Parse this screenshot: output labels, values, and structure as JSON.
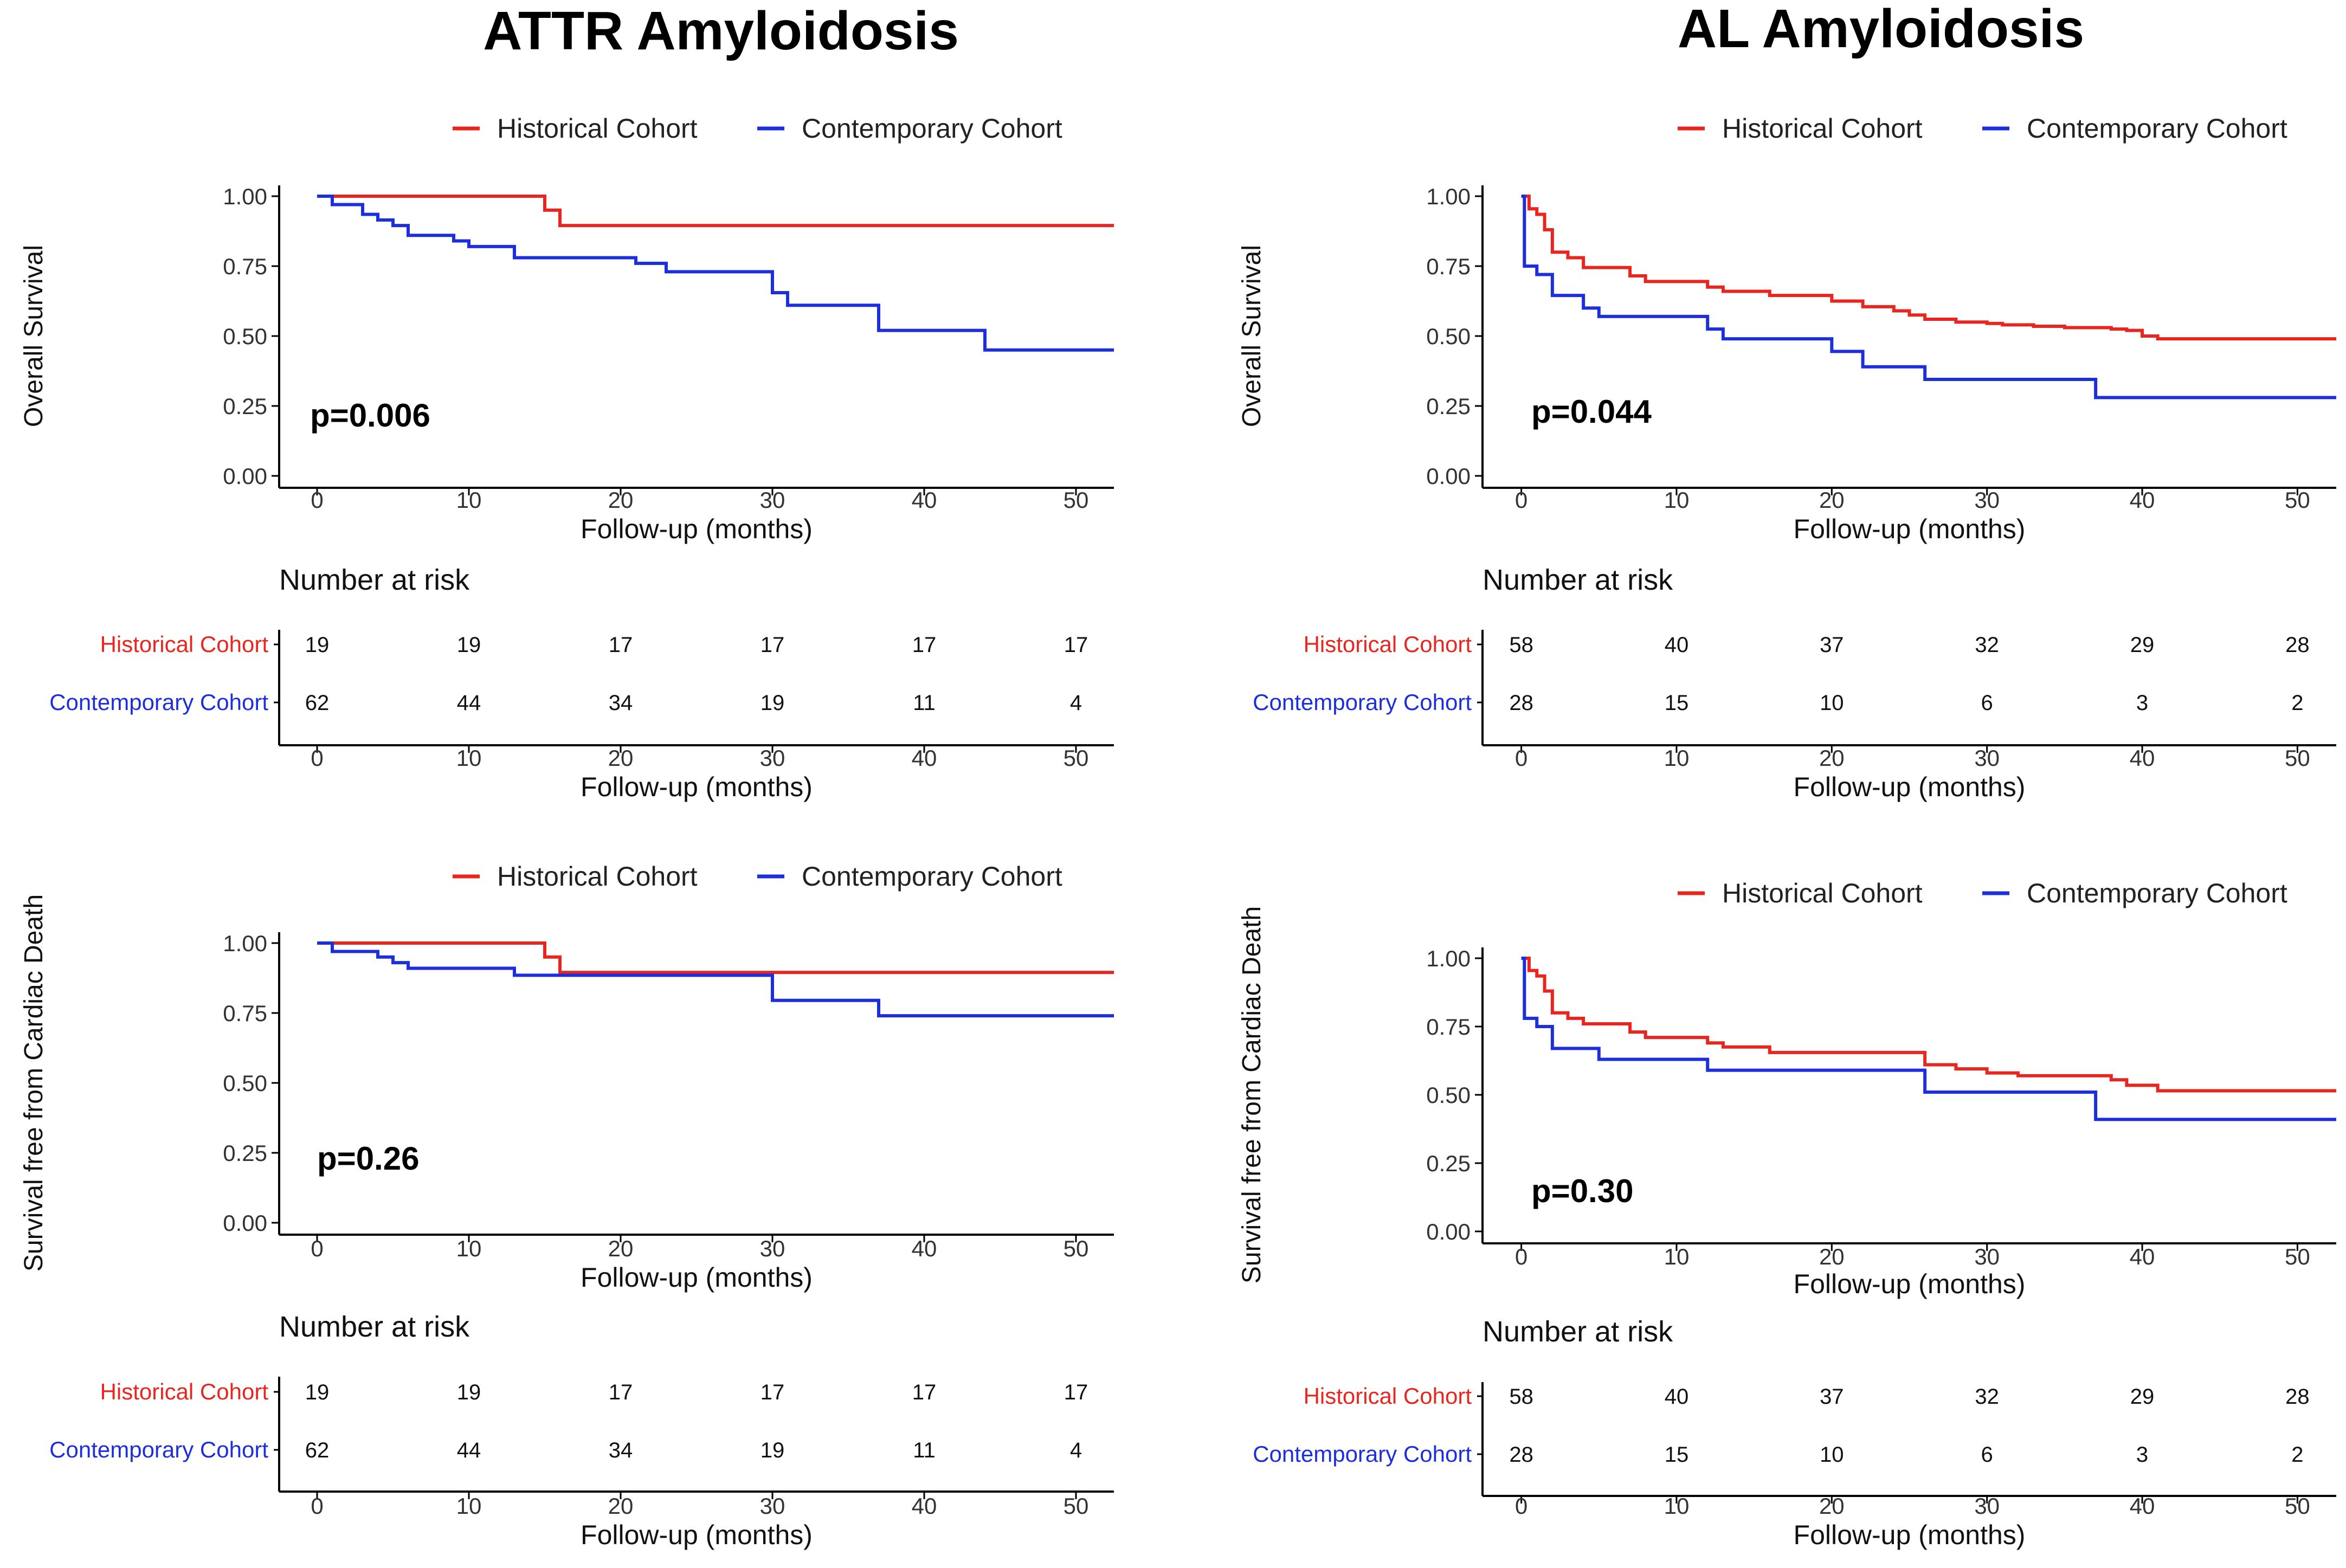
{
  "figure": {
    "columns": [
      {
        "title": "ATTR Amyloidosis"
      },
      {
        "title": "AL Amyloidosis"
      }
    ]
  },
  "colors": {
    "historical": "#e8261f",
    "contemporary": "#1c2fdb",
    "axis": "#000000"
  },
  "chart_data": [
    {
      "id": "attr-os",
      "type": "line",
      "title": "ATTR Amyloidosis",
      "ylabel": "Overall Survival",
      "xlabel": "Follow-up (months)",
      "xlim": [
        -2.5,
        52.5
      ],
      "ylim": [
        -0.05,
        1.05
      ],
      "xticks": [
        0,
        10,
        20,
        30,
        40,
        50
      ],
      "yticks": [
        "0.00",
        "0.25",
        "0.50",
        "0.75",
        "1.00"
      ],
      "legend": [
        "Historical Cohort",
        "Contemporary Cohort"
      ],
      "legend_position": "top",
      "pvalue": "p=0.006",
      "series": [
        {
          "name": "Historical Cohort",
          "x": [
            0,
            15,
            16,
            52.5
          ],
          "y": [
            1.0,
            0.95,
            0.895,
            0.895
          ]
        },
        {
          "name": "Contemporary Cohort",
          "x": [
            0,
            1,
            3,
            4,
            5,
            6,
            9,
            10,
            13,
            21,
            23,
            30,
            31,
            37,
            44,
            52.5
          ],
          "y": [
            1.0,
            0.97,
            0.935,
            0.915,
            0.895,
            0.86,
            0.84,
            0.82,
            0.78,
            0.76,
            0.73,
            0.655,
            0.61,
            0.52,
            0.45,
            0.45
          ]
        }
      ],
      "risk_table": {
        "title": "Number at risk",
        "rows": [
          {
            "name": "Historical Cohort",
            "values": [
              "19",
              "19",
              "17",
              "17",
              "17",
              "17"
            ]
          },
          {
            "name": "Contemporary Cohort",
            "values": [
              "62",
              "44",
              "34",
              "19",
              "11",
              "4"
            ]
          }
        ]
      }
    },
    {
      "id": "al-os",
      "type": "line",
      "title": "AL Amyloidosis",
      "ylabel": "Overall Survival",
      "xlabel": "Follow-up (months)",
      "xlim": [
        -2.5,
        52.5
      ],
      "ylim": [
        -0.05,
        1.05
      ],
      "xticks": [
        0,
        10,
        20,
        30,
        40,
        50
      ],
      "yticks": [
        "0.00",
        "0.25",
        "0.50",
        "0.75",
        "1.00"
      ],
      "legend": [
        "Historical Cohort",
        "Contemporary Cohort"
      ],
      "legend_position": "top",
      "pvalue": "p=0.044",
      "series": [
        {
          "name": "Historical Cohort",
          "x": [
            0,
            0.5,
            1,
            1.5,
            2,
            3,
            4,
            7,
            8,
            12,
            13,
            16,
            20,
            22,
            24,
            25,
            26,
            28,
            30,
            31,
            33,
            35,
            38,
            39,
            40,
            41,
            52.5
          ],
          "y": [
            1.0,
            0.955,
            0.935,
            0.88,
            0.8,
            0.78,
            0.745,
            0.715,
            0.695,
            0.675,
            0.66,
            0.645,
            0.625,
            0.605,
            0.59,
            0.575,
            0.56,
            0.55,
            0.545,
            0.54,
            0.535,
            0.53,
            0.525,
            0.52,
            0.5,
            0.49,
            0.49
          ]
        },
        {
          "name": "Contemporary Cohort",
          "x": [
            0,
            0.2,
            1,
            2,
            4,
            5,
            12,
            13,
            20,
            22,
            26,
            37,
            52.5
          ],
          "y": [
            1.0,
            0.75,
            0.72,
            0.645,
            0.6,
            0.57,
            0.525,
            0.49,
            0.445,
            0.39,
            0.345,
            0.28,
            0.28
          ]
        }
      ],
      "risk_table": {
        "title": "Number at risk",
        "rows": [
          {
            "name": "Historical Cohort",
            "values": [
              "58",
              "40",
              "37",
              "32",
              "29",
              "28"
            ]
          },
          {
            "name": "Contemporary Cohort",
            "values": [
              "28",
              "15",
              "10",
              "6",
              "3",
              "2"
            ]
          }
        ]
      }
    },
    {
      "id": "attr-cd",
      "type": "line",
      "title": "ATTR Amyloidosis",
      "ylabel": "Survival free from Cardiac Death",
      "xlabel": "Follow-up (months)",
      "xlim": [
        -2.5,
        52.5
      ],
      "ylim": [
        -0.05,
        1.05
      ],
      "xticks": [
        0,
        10,
        20,
        30,
        40,
        50
      ],
      "yticks": [
        "0.00",
        "0.25",
        "0.50",
        "0.75",
        "1.00"
      ],
      "legend": [
        "Historical Cohort",
        "Contemporary Cohort"
      ],
      "legend_position": "top",
      "pvalue": "p=0.26",
      "series": [
        {
          "name": "Historical Cohort",
          "x": [
            0,
            15,
            16,
            52.5
          ],
          "y": [
            1.0,
            0.95,
            0.895,
            0.895
          ]
        },
        {
          "name": "Contemporary Cohort",
          "x": [
            0,
            1,
            4,
            5,
            6,
            13,
            30,
            37,
            52.5
          ],
          "y": [
            1.0,
            0.97,
            0.95,
            0.93,
            0.91,
            0.885,
            0.795,
            0.74,
            0.74
          ]
        }
      ],
      "risk_table": {
        "title": "Number at risk",
        "rows": [
          {
            "name": "Historical Cohort",
            "values": [
              "19",
              "19",
              "17",
              "17",
              "17",
              "17"
            ]
          },
          {
            "name": "Contemporary Cohort",
            "values": [
              "62",
              "44",
              "34",
              "19",
              "11",
              "4"
            ]
          }
        ]
      }
    },
    {
      "id": "al-cd",
      "type": "line",
      "title": "AL Amyloidosis",
      "ylabel": "Survival free from Cardiac Death",
      "xlabel": "Follow-up (months)",
      "xlim": [
        -2.5,
        52.5
      ],
      "ylim": [
        -0.05,
        1.05
      ],
      "xticks": [
        0,
        10,
        20,
        30,
        40,
        50
      ],
      "yticks": [
        "0.00",
        "0.25",
        "0.50",
        "0.75",
        "1.00"
      ],
      "legend": [
        "Historical Cohort",
        "Contemporary Cohort"
      ],
      "legend_position": "top",
      "pvalue": "p=0.30",
      "series": [
        {
          "name": "Historical Cohort",
          "x": [
            0,
            0.5,
            1,
            1.5,
            2,
            3,
            4,
            7,
            8,
            12,
            13,
            16,
            26,
            28,
            30,
            32,
            38,
            39,
            41,
            52.5
          ],
          "y": [
            1.0,
            0.955,
            0.935,
            0.88,
            0.8,
            0.78,
            0.76,
            0.73,
            0.71,
            0.69,
            0.675,
            0.655,
            0.61,
            0.595,
            0.58,
            0.57,
            0.555,
            0.535,
            0.515,
            0.515
          ]
        },
        {
          "name": "Contemporary Cohort",
          "x": [
            0,
            0.2,
            1,
            2,
            5,
            12,
            26,
            37,
            52.5
          ],
          "y": [
            1.0,
            0.78,
            0.75,
            0.67,
            0.63,
            0.59,
            0.51,
            0.41,
            0.41
          ]
        }
      ],
      "risk_table": {
        "title": "Number at risk",
        "rows": [
          {
            "name": "Historical Cohort",
            "values": [
              "58",
              "40",
              "37",
              "32",
              "29",
              "28"
            ]
          },
          {
            "name": "Contemporary Cohort",
            "values": [
              "28",
              "15",
              "10",
              "6",
              "3",
              "2"
            ]
          }
        ]
      }
    }
  ]
}
